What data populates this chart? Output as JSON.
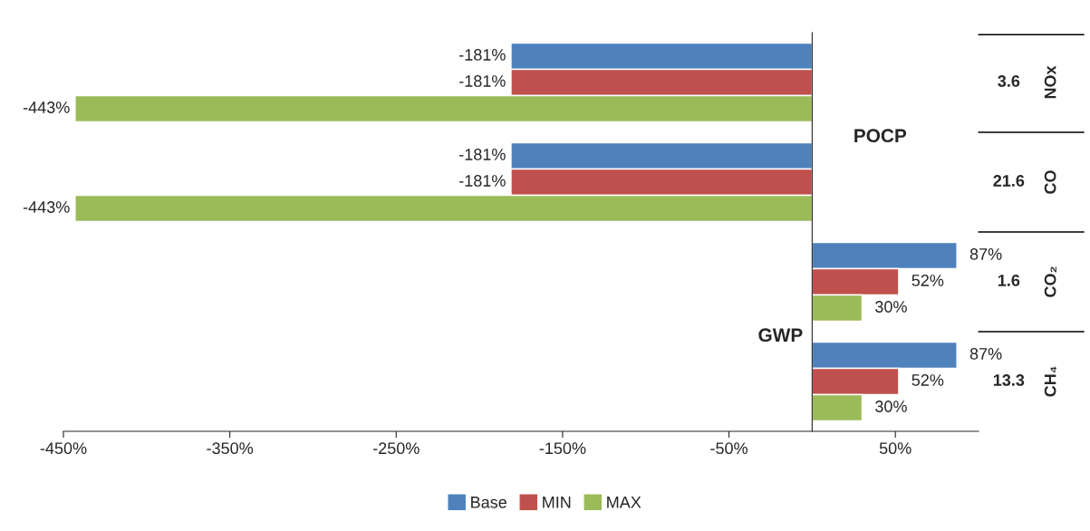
{
  "chart_data": {
    "type": "bar",
    "orientation": "horizontal",
    "categories": [
      "NOx",
      "CO",
      "CO₂",
      "CH₄"
    ],
    "series": [
      {
        "name": "Base",
        "color": "#4f81bd",
        "values": [
          -181,
          -181,
          87,
          87
        ],
        "value_labels": [
          "-181%",
          "-181%",
          "87%",
          "87%"
        ]
      },
      {
        "name": "MIN",
        "color": "#c0504d",
        "values": [
          -181,
          -181,
          52,
          52
        ],
        "value_labels": [
          "-181%",
          "-181%",
          "52%",
          "52%"
        ]
      },
      {
        "name": "MAX",
        "color": "#9bbb59",
        "values": [
          -443,
          -443,
          30,
          30
        ],
        "value_labels": [
          "-443%",
          "-443%",
          "30%",
          "30%"
        ]
      }
    ],
    "xlim": [
      -450,
      100
    ],
    "xticks": [
      {
        "value": -450,
        "label": "-450%"
      },
      {
        "value": -350,
        "label": "-350%"
      },
      {
        "value": -250,
        "label": "-250%"
      },
      {
        "value": -150,
        "label": "-150%"
      },
      {
        "value": -50,
        "label": "-50%"
      },
      {
        "value": 50,
        "label": "50%"
      }
    ],
    "annotations": [
      "3.6",
      "21.6",
      "1.6",
      "13.3",
      "POCP",
      "GWP"
    ],
    "legend": "bottom",
    "grid": false
  }
}
